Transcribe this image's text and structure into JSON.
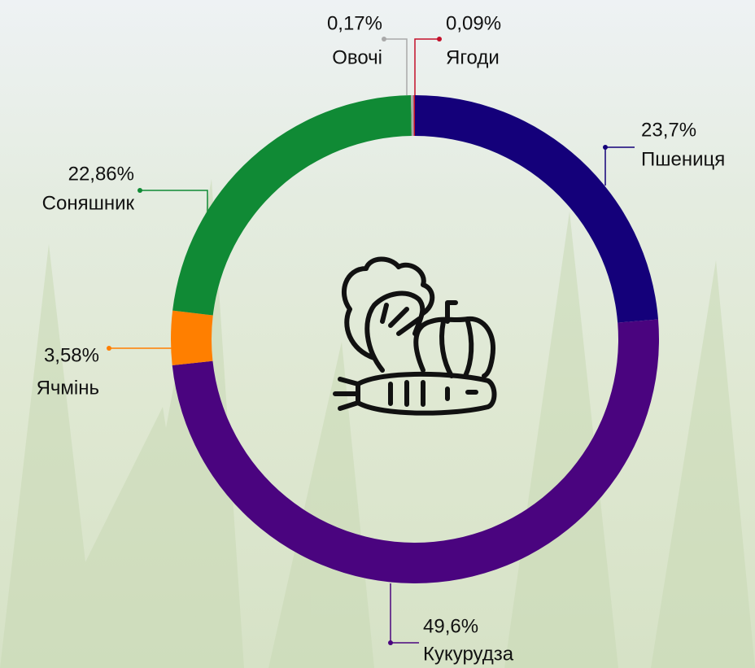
{
  "chart_data": {
    "type": "donut",
    "categories": [
      "Пшениця",
      "Кукурудза",
      "Ячмінь",
      "Соняшник",
      "Овочі",
      "Ягоди"
    ],
    "values": [
      23.7,
      49.6,
      3.58,
      22.86,
      0.17,
      0.09
    ],
    "value_labels": [
      "23,7%",
      "49,6%",
      "3,58%",
      "22,86%",
      "0,17%",
      "0,09%"
    ],
    "colors": [
      "#14007a",
      "#4a047f",
      "#ff7f00",
      "#108a35",
      "#a9a9a9",
      "#c3102a"
    ]
  }
}
